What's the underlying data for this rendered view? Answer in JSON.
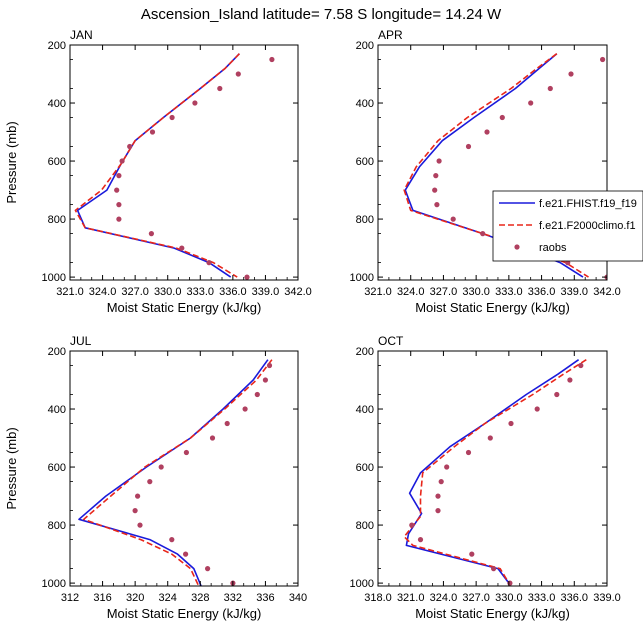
{
  "figure": {
    "title": "Ascension_Island  latitude= 7.58 S longitude= 14.24 W"
  },
  "colors": {
    "fhist": "#1a1adb",
    "f2000": "#e8261a",
    "raobs": "#b04060"
  },
  "chart_data": [
    {
      "type": "line",
      "panel": "JAN",
      "title": "JAN",
      "xlabel": "Moist Static Energy (kJ/kg)",
      "ylabel": "Pressure (mb)",
      "xlim": [
        321,
        342
      ],
      "ylim": [
        1010,
        200
      ],
      "xticks": [
        321,
        324,
        327,
        330,
        333,
        336,
        339,
        342
      ],
      "xtick_labels": [
        "321.0",
        "324.0",
        "327.0",
        "330.0",
        "333.0",
        "336.0",
        "339.0",
        "342.0"
      ],
      "yticks": [
        200,
        400,
        600,
        800,
        1000
      ],
      "ytick_labels": [
        "200",
        "400",
        "600",
        "800",
        "1000"
      ],
      "series": [
        {
          "name": "f.e21.FHIST.f19_f19",
          "style": "solid",
          "pressure": [
            230,
            280,
            350,
            450,
            530,
            610,
            700,
            770,
            830,
            900,
            950,
            1000
          ],
          "values": [
            336.6,
            335.3,
            333.0,
            329.6,
            327.0,
            325.7,
            324.4,
            321.7,
            322.4,
            330.6,
            333.8,
            335.8
          ]
        },
        {
          "name": "f.e21.F2000climo.f1",
          "style": "dashed",
          "pressure": [
            230,
            280,
            350,
            450,
            530,
            610,
            700,
            770,
            830,
            900,
            950,
            1000
          ],
          "values": [
            336.6,
            335.3,
            333.0,
            329.6,
            327.0,
            325.7,
            323.9,
            321.5,
            322.4,
            330.8,
            334.2,
            336.4
          ]
        },
        {
          "name": "raobs",
          "style": "dots",
          "pressure": [
            250,
            300,
            350,
            400,
            450,
            500,
            550,
            600,
            650,
            700,
            750,
            800,
            850,
            900,
            950,
            1000
          ],
          "values": [
            339.6,
            336.5,
            334.8,
            332.5,
            330.4,
            328.6,
            326.5,
            325.8,
            325.5,
            325.3,
            325.5,
            325.5,
            328.5,
            331.3,
            333.8,
            337.3
          ]
        }
      ]
    },
    {
      "type": "line",
      "panel": "APR",
      "title": "APR",
      "xlabel": "Moist Static Energy (kJ/kg)",
      "ylabel": "",
      "xlim": [
        321,
        342
      ],
      "ylim": [
        1010,
        200
      ],
      "xticks": [
        321,
        324,
        327,
        330,
        333,
        336,
        339,
        342
      ],
      "xtick_labels": [
        "321.0",
        "324.0",
        "327.0",
        "330.0",
        "333.0",
        "336.0",
        "339.0",
        "342.0"
      ],
      "yticks": [
        200,
        400,
        600,
        800,
        1000
      ],
      "ytick_labels": [
        "200",
        "400",
        "600",
        "800",
        "1000"
      ],
      "series": [
        {
          "name": "f.e21.FHIST.f19_f19",
          "style": "solid",
          "pressure": [
            230,
            280,
            350,
            450,
            530,
            620,
            700,
            770,
            850,
            900,
            950,
            1000
          ],
          "values": [
            337.4,
            335.8,
            333.6,
            329.8,
            326.9,
            324.8,
            323.5,
            324.2,
            330.6,
            334.3,
            337.7,
            339.8
          ]
        },
        {
          "name": "f.e21.F2000climo.f1",
          "style": "dashed",
          "pressure": [
            230,
            280,
            350,
            450,
            530,
            620,
            700,
            770,
            850,
            900,
            950,
            1000
          ],
          "values": [
            337.4,
            335.6,
            333.2,
            329.2,
            326.5,
            324.5,
            323.4,
            324.0,
            330.6,
            334.7,
            338.2,
            340.3
          ]
        },
        {
          "name": "raobs",
          "style": "dots",
          "pressure": [
            250,
            300,
            350,
            400,
            450,
            500,
            550,
            600,
            650,
            700,
            750,
            800,
            850,
            900,
            950,
            1000
          ],
          "values": [
            341.6,
            338.7,
            336.8,
            335.0,
            332.4,
            331.0,
            329.3,
            326.6,
            326.3,
            326.2,
            326.4,
            327.9,
            330.6,
            334.6,
            338.4,
            342.0
          ]
        }
      ]
    },
    {
      "type": "line",
      "panel": "JUL",
      "title": "JUL",
      "xlabel": "Moist Static Energy (kJ/kg)",
      "ylabel": "Pressure (mb)",
      "xlim": [
        312,
        340
      ],
      "ylim": [
        1010,
        200
      ],
      "xticks": [
        312,
        316,
        320,
        324,
        328,
        332,
        336,
        340
      ],
      "xtick_labels": [
        "312",
        "316",
        "320",
        "324",
        "328",
        "332",
        "336",
        "340"
      ],
      "yticks": [
        200,
        400,
        600,
        800,
        1000
      ],
      "ytick_labels": [
        "200",
        "400",
        "600",
        "800",
        "1000"
      ],
      "series": [
        {
          "name": "f.e21.FHIST.f19_f19",
          "style": "solid",
          "pressure": [
            230,
            300,
            400,
            500,
            600,
            700,
            780,
            850,
            900,
            950,
            1010
          ],
          "values": [
            336.3,
            334.5,
            330.8,
            326.8,
            321.4,
            316.4,
            313.1,
            321.8,
            325.2,
            327.2,
            328.1
          ]
        },
        {
          "name": "f.e21.F2000climo.f1",
          "style": "dashed",
          "pressure": [
            230,
            300,
            400,
            500,
            600,
            700,
            780,
            850,
            900,
            950,
            1010
          ],
          "values": [
            336.8,
            334.9,
            331.0,
            326.8,
            321.2,
            317.0,
            313.7,
            320.7,
            324.5,
            326.8,
            327.8
          ]
        },
        {
          "name": "raobs",
          "style": "dots",
          "pressure": [
            250,
            300,
            350,
            400,
            450,
            500,
            550,
            600,
            650,
            700,
            750,
            800,
            850,
            900,
            950,
            1000
          ],
          "values": [
            336.5,
            336.0,
            335.0,
            333.5,
            331.3,
            329.5,
            326.3,
            323.2,
            321.8,
            320.3,
            320.0,
            320.6,
            324.5,
            326.2,
            328.9,
            332.0
          ]
        }
      ]
    },
    {
      "type": "line",
      "panel": "OCT",
      "title": "OCT",
      "xlabel": "Moist Static Energy (kJ/kg)",
      "ylabel": "",
      "xlim": [
        318,
        339
      ],
      "ylim": [
        1010,
        200
      ],
      "xticks": [
        318,
        321,
        324,
        327,
        330,
        333,
        336,
        339
      ],
      "xtick_labels": [
        "318.0",
        "321.0",
        "324.0",
        "327.0",
        "330.0",
        "333.0",
        "336.0",
        "339.0"
      ],
      "yticks": [
        200,
        400,
        600,
        800,
        1000
      ],
      "ytick_labels": [
        "200",
        "400",
        "600",
        "800",
        "1000"
      ],
      "series": [
        {
          "name": "f.e21.FHIST.f19_f19",
          "style": "solid",
          "pressure": [
            230,
            280,
            350,
            450,
            530,
            620,
            690,
            760,
            830,
            870,
            950,
            1000
          ],
          "values": [
            336.4,
            334.5,
            331.6,
            327.8,
            324.6,
            321.9,
            320.9,
            322.0,
            320.8,
            320.6,
            329.0,
            330.0
          ]
        },
        {
          "name": "f.e21.F2000climo.f1",
          "style": "dashed",
          "pressure": [
            230,
            280,
            350,
            450,
            530,
            620,
            700,
            770,
            840,
            870,
            950,
            1000
          ],
          "values": [
            337.1,
            335.0,
            332.2,
            327.8,
            325.0,
            322.1,
            321.9,
            321.9,
            320.4,
            321.2,
            329.2,
            330.0
          ]
        },
        {
          "name": "raobs",
          "style": "dots",
          "pressure": [
            250,
            300,
            350,
            400,
            450,
            500,
            550,
            600,
            650,
            700,
            750,
            800,
            850,
            900,
            950,
            1000
          ],
          "values": [
            336.6,
            335.6,
            334.4,
            332.6,
            330.2,
            328.3,
            326.3,
            324.3,
            323.8,
            323.5,
            323.5,
            321.1,
            321.9,
            326.6,
            328.6,
            330.1
          ]
        }
      ]
    }
  ],
  "legend": {
    "placement": "right-of-APR-panel",
    "entries": [
      {
        "label": "f.e21.FHIST.f19_f19",
        "style": "solid"
      },
      {
        "label": "f.e21.F2000climo.f1",
        "style": "dashed"
      },
      {
        "label": "raobs",
        "style": "dots"
      }
    ]
  }
}
